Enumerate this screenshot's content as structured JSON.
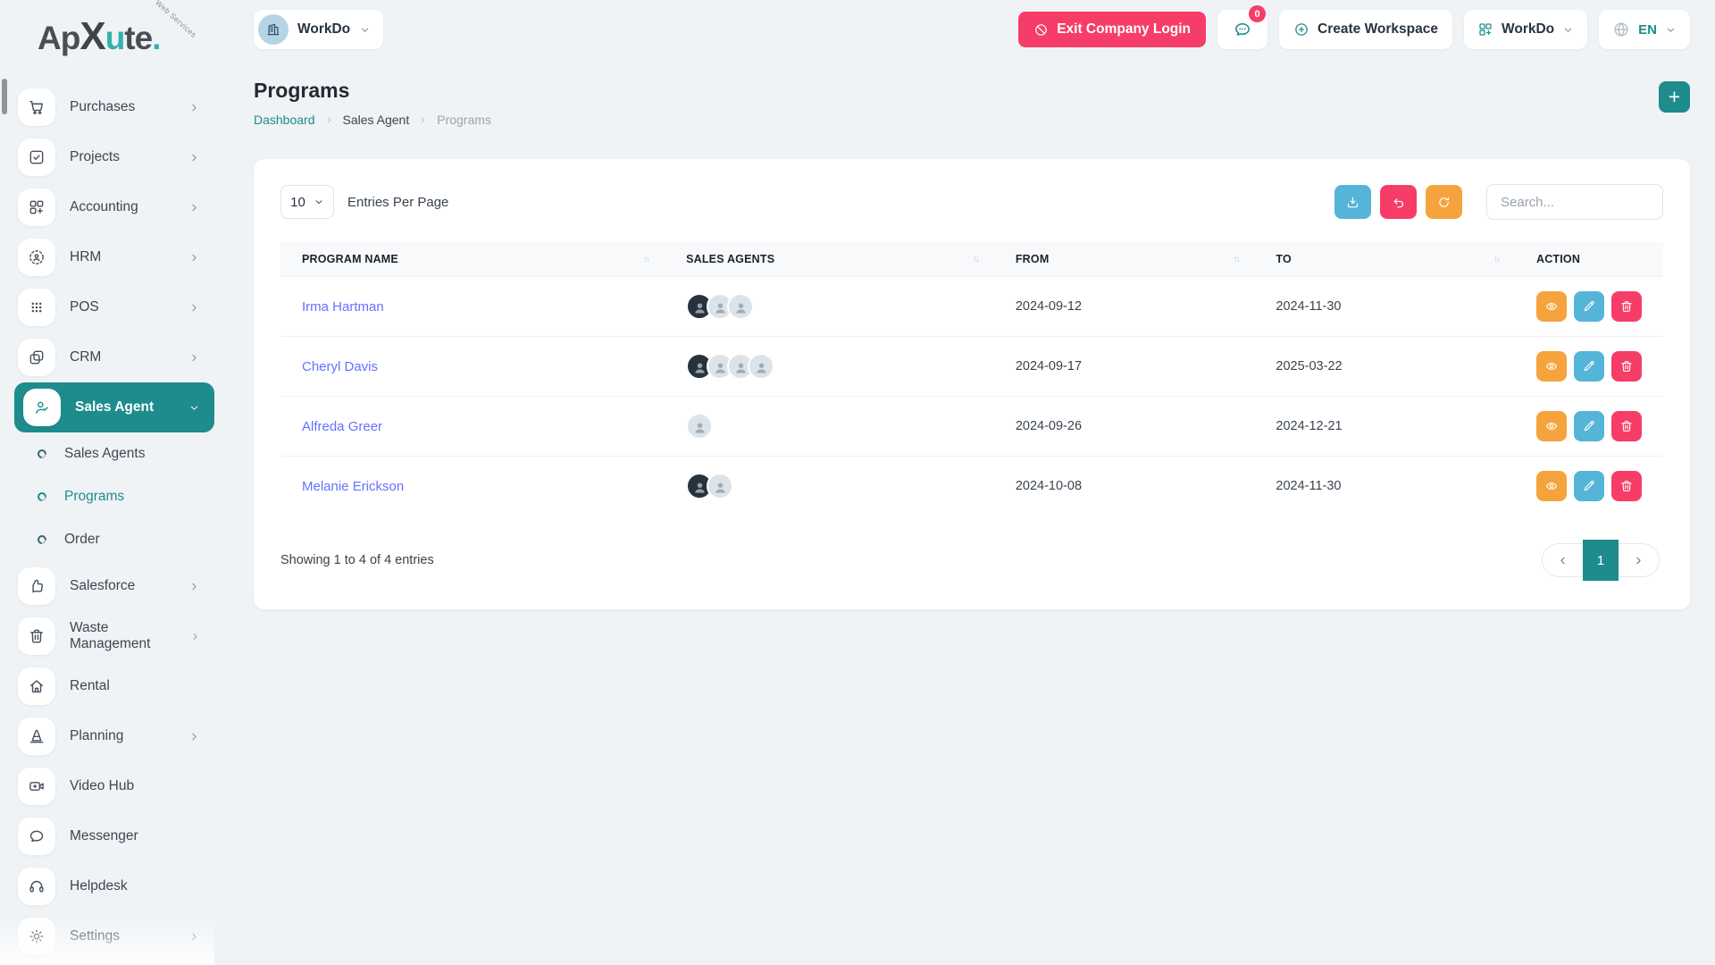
{
  "brand": {
    "name": "ApXute",
    "tagline": "Web Services"
  },
  "topbar": {
    "company_selector": {
      "label": "WorkDo",
      "icon": "building-icon"
    },
    "exit_company_login": {
      "label": "Exit Company Login"
    },
    "messages": {
      "badge": "0"
    },
    "create_workspace": {
      "label": "Create Workspace"
    },
    "workspace_selector": {
      "label": "WorkDo"
    },
    "language_selector": {
      "label": "EN"
    }
  },
  "sidebar": {
    "items": [
      {
        "label": "Purchases",
        "icon": "cart",
        "chevron": true
      },
      {
        "label": "Projects",
        "icon": "check-square",
        "chevron": true
      },
      {
        "label": "Accounting",
        "icon": "grid-plus",
        "chevron": true
      },
      {
        "label": "HRM",
        "icon": "person-dashed",
        "chevron": true
      },
      {
        "label": "POS",
        "icon": "dots-grid",
        "chevron": true
      },
      {
        "label": "CRM",
        "icon": "cards",
        "chevron": true
      },
      {
        "label": "Sales Agent",
        "icon": "person-check",
        "chevron": true,
        "active": true,
        "expanded": true
      },
      {
        "label": "Sales Agents",
        "sub": true
      },
      {
        "label": "Programs",
        "sub": true,
        "active": true
      },
      {
        "label": "Order",
        "sub": true
      },
      {
        "label": "Salesforce",
        "icon": "thumbs-up",
        "chevron": true
      },
      {
        "label": "Waste Management",
        "icon": "trash",
        "chevron": true
      },
      {
        "label": "Rental",
        "icon": "home",
        "chevron": false
      },
      {
        "label": "Planning",
        "icon": "cone",
        "chevron": true
      },
      {
        "label": "Video Hub",
        "icon": "video",
        "chevron": false
      },
      {
        "label": "Messenger",
        "icon": "chat",
        "chevron": false
      },
      {
        "label": "Helpdesk",
        "icon": "headset",
        "chevron": false
      },
      {
        "label": "Settings",
        "icon": "gear",
        "chevron": true
      }
    ]
  },
  "page": {
    "title": "Programs",
    "breadcrumb": [
      "Dashboard",
      "Sales Agent",
      "Programs"
    ],
    "add_button_label": "+"
  },
  "toolbar": {
    "entries_per_page_value": "10",
    "entries_per_page_label": "Entries Per Page",
    "search_placeholder": "Search..."
  },
  "table": {
    "columns": [
      {
        "label": "PROGRAM NAME",
        "sortable": true
      },
      {
        "label": "SALES AGENTS",
        "sortable": true
      },
      {
        "label": "FROM",
        "sortable": true
      },
      {
        "label": "TO",
        "sortable": true
      },
      {
        "label": "ACTION",
        "sortable": false
      }
    ],
    "rows": [
      {
        "name": "Irma Hartman",
        "photo_avatars": 1,
        "placeholder_avatars": 2,
        "from": "2024-09-12",
        "to": "2024-11-30"
      },
      {
        "name": "Cheryl Davis",
        "photo_avatars": 1,
        "placeholder_avatars": 3,
        "from": "2024-09-17",
        "to": "2025-03-22"
      },
      {
        "name": "Alfreda Greer",
        "photo_avatars": 0,
        "placeholder_avatars": 1,
        "from": "2024-09-26",
        "to": "2024-12-21"
      },
      {
        "name": "Melanie Erickson",
        "photo_avatars": 1,
        "placeholder_avatars": 1,
        "from": "2024-10-08",
        "to": "2024-11-30"
      }
    ],
    "actions": [
      "view",
      "edit",
      "delete"
    ]
  },
  "footer": {
    "showing_text": "Showing 1 to 4 of 4 entries",
    "current_page": "1"
  },
  "colors": {
    "primary": "#1e8c8c",
    "danger": "#f63d68",
    "info": "#54b5d8",
    "warning": "#f5a43d",
    "link": "#6571ff"
  }
}
